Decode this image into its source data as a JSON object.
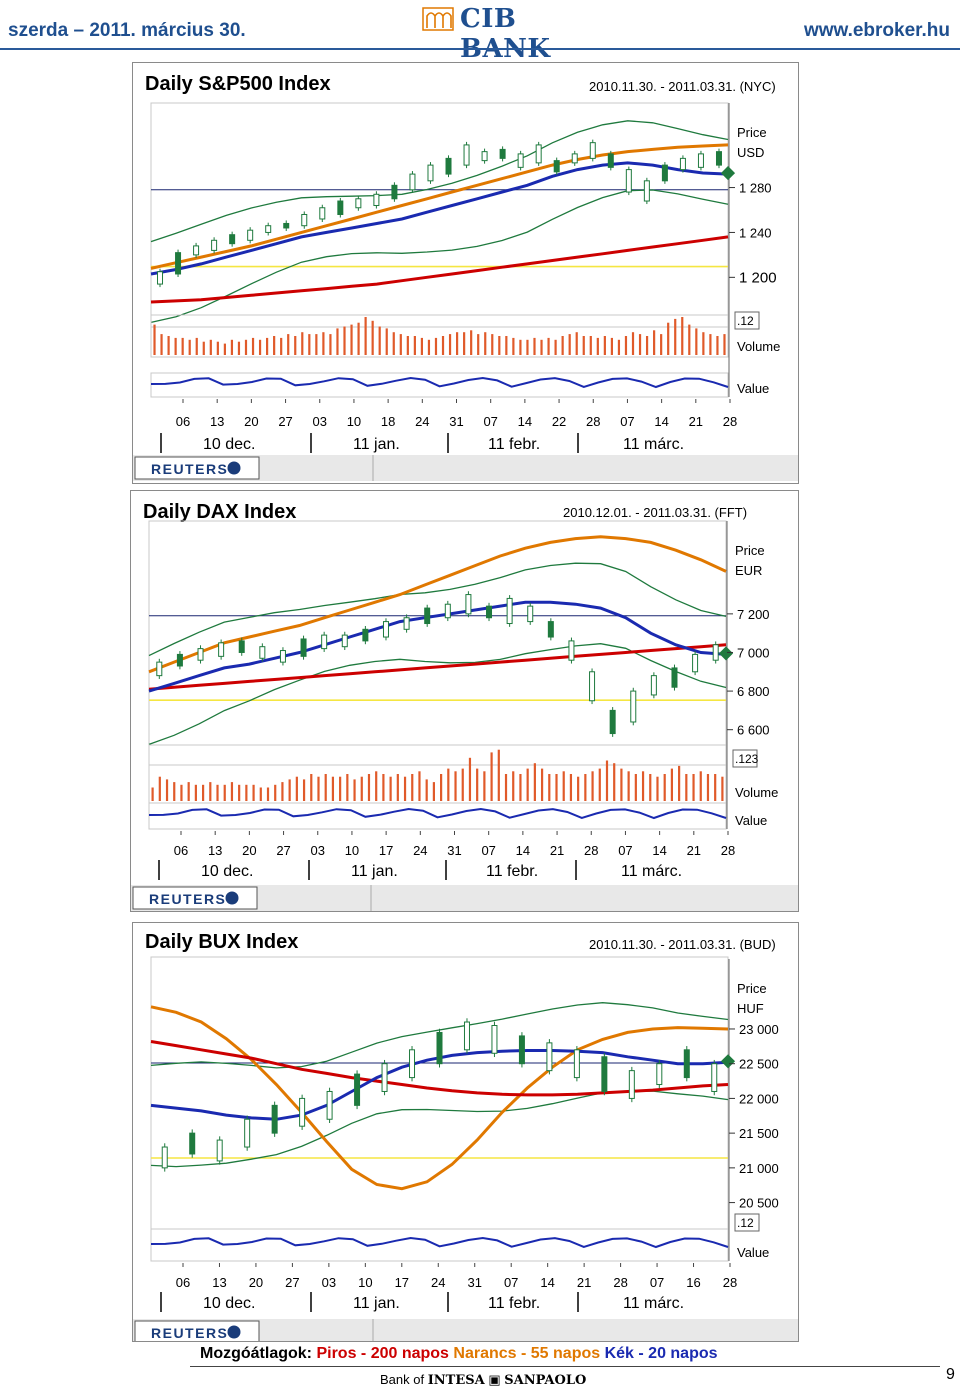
{
  "header": {
    "date": "szerda – 2011. március 30.",
    "logo": "CIB BANK",
    "url": "www.ebroker.hu"
  },
  "charts": [
    {
      "title": "Daily S&P500 Index",
      "range": "2010.11.30. - 2011.03.31. (NYC)",
      "price_label": "Price",
      "currency": "USD",
      "y_ticks": [
        "1 280",
        "1 240",
        "1 200"
      ],
      "y_bold_tick": "1 200",
      "y_tick_values": [
        1280,
        1240,
        1200
      ],
      "ylim": [
        1170,
        1350
      ],
      "scale_marker": ".12",
      "volume_label": "Volume",
      "value_label": "Value",
      "x_ticks": [
        "06",
        "13",
        "20",
        "27",
        "03",
        "10",
        "18",
        "24",
        "31",
        "07",
        "14",
        "22",
        "28",
        "07",
        "14",
        "21",
        "28"
      ],
      "months": [
        "10 dec.",
        "11 jan.",
        "11 febr.",
        "11 márc."
      ]
    },
    {
      "title": "Daily DAX Index",
      "range": "2010.12.01. - 2011.03.31. (FFT)",
      "price_label": "Price",
      "currency": "EUR",
      "y_ticks": [
        "7 200",
        "7 000",
        "6 800",
        "6 600"
      ],
      "y_tick_values": [
        7200,
        7000,
        6800,
        6600
      ],
      "ylim": [
        6500,
        7650
      ],
      "scale_marker": ".123",
      "volume_label": "Volume",
      "value_label": "Value",
      "x_ticks": [
        "06",
        "13",
        "20",
        "27",
        "03",
        "10",
        "17",
        "24",
        "31",
        "07",
        "14",
        "21",
        "28",
        "07",
        "14",
        "21",
        "28"
      ],
      "months": [
        "10 dec.",
        "11 jan.",
        "11 febr.",
        "11 márc."
      ]
    },
    {
      "title": "Daily BUX Index",
      "range": "2010.11.30. - 2011.03.31. (BUD)",
      "price_label": "Price",
      "currency": "HUF",
      "y_ticks": [
        "23 000",
        "22 500",
        "22 000",
        "21 500",
        "21 000",
        "20 500"
      ],
      "y_tick_values": [
        23000,
        22500,
        22000,
        21500,
        21000,
        20500
      ],
      "ylim": [
        20350,
        23950
      ],
      "scale_marker": ".12",
      "value_label": "Value",
      "x_ticks": [
        "06",
        "13",
        "20",
        "27",
        "03",
        "10",
        "17",
        "24",
        "31",
        "07",
        "14",
        "21",
        "28",
        "07",
        "16",
        "28"
      ],
      "months": [
        "10 dec.",
        "11 jan.",
        "11 febr.",
        "11 márc."
      ]
    }
  ],
  "chart_data": [
    {
      "type": "line",
      "title": "Daily S&P500 Index",
      "ylim": [
        1170,
        1350
      ],
      "series": [
        {
          "color": "#e07800",
          "values": [
            1208,
            1213,
            1218,
            1223,
            1228,
            1234,
            1240,
            1246,
            1252,
            1258,
            1264,
            1270,
            1276,
            1282,
            1288,
            1294,
            1300,
            1305,
            1309,
            1312,
            1314,
            1316,
            1317,
            1318
          ]
        },
        {
          "color": "#cc0000",
          "values": [
            1178,
            1179,
            1180,
            1182,
            1184,
            1186,
            1188,
            1190,
            1192,
            1194,
            1197,
            1200,
            1203,
            1206,
            1209,
            1212,
            1215,
            1218,
            1221,
            1224,
            1227,
            1230,
            1233,
            1236
          ]
        },
        {
          "color": "#1a2ab0",
          "values": [
            1203,
            1207,
            1212,
            1218,
            1224,
            1230,
            1236,
            1240,
            1244,
            1248,
            1252,
            1258,
            1264,
            1270,
            1276,
            1282,
            1290,
            1296,
            1300,
            1302,
            1300,
            1296,
            1293,
            1292
          ]
        }
      ],
      "candles": [
        [
          1194,
          1205
        ],
        [
          1203,
          1222
        ],
        [
          1220,
          1228
        ],
        [
          1224,
          1233
        ],
        [
          1230,
          1238
        ],
        [
          1233,
          1242
        ],
        [
          1240,
          1246
        ],
        [
          1244,
          1248
        ],
        [
          1246,
          1256
        ],
        [
          1252,
          1262
        ],
        [
          1256,
          1268
        ],
        [
          1262,
          1270
        ],
        [
          1264,
          1274
        ],
        [
          1270,
          1282
        ],
        [
          1278,
          1292
        ],
        [
          1286,
          1300
        ],
        [
          1292,
          1306
        ],
        [
          1300,
          1318
        ],
        [
          1304,
          1312
        ],
        [
          1306,
          1314
        ],
        [
          1298,
          1310
        ],
        [
          1302,
          1318
        ],
        [
          1294,
          1304
        ],
        [
          1302,
          1310
        ],
        [
          1306,
          1320
        ],
        [
          1298,
          1310
        ],
        [
          1276,
          1296
        ],
        [
          1268,
          1286
        ],
        [
          1286,
          1300
        ],
        [
          1296,
          1306
        ],
        [
          1298,
          1310
        ],
        [
          1300,
          1312
        ]
      ],
      "volumes": [
        0.8,
        0.55,
        0.5,
        0.45,
        0.45,
        0.4,
        0.45,
        0.35,
        0.4,
        0.35,
        0.3,
        0.4,
        0.35,
        0.4,
        0.45,
        0.4,
        0.45,
        0.5,
        0.45,
        0.55,
        0.5,
        0.6,
        0.55,
        0.55,
        0.6,
        0.55,
        0.7,
        0.75,
        0.8,
        0.85,
        1.0,
        0.9,
        0.75,
        0.7,
        0.6,
        0.55,
        0.5,
        0.5,
        0.45,
        0.4,
        0.45,
        0.5,
        0.55,
        0.6,
        0.6,
        0.65,
        0.55,
        0.6,
        0.55,
        0.5,
        0.5,
        0.45,
        0.4,
        0.4,
        0.45,
        0.4,
        0.45,
        0.4,
        0.5,
        0.55,
        0.6,
        0.5,
        0.5,
        0.45,
        0.5,
        0.45,
        0.4,
        0.5,
        0.6,
        0.55,
        0.5,
        0.65,
        0.55,
        0.85,
        0.95,
        1.0,
        0.8,
        0.7,
        0.6,
        0.55,
        0.5,
        0.55
      ]
    },
    {
      "type": "line",
      "title": "Daily DAX Index",
      "ylim": [
        6500,
        7650
      ],
      "series": [
        {
          "color": "#e07800",
          "values": [
            6900,
            6950,
            7000,
            7050,
            7080,
            7110,
            7140,
            7180,
            7220,
            7260,
            7300,
            7350,
            7400,
            7450,
            7500,
            7540,
            7570,
            7590,
            7600,
            7590,
            7570,
            7530,
            7480,
            7420
          ]
        },
        {
          "color": "#cc0000",
          "values": [
            6810,
            6820,
            6830,
            6840,
            6850,
            6860,
            6870,
            6880,
            6890,
            6900,
            6910,
            6920,
            6930,
            6940,
            6950,
            6960,
            6970,
            6980,
            6990,
            7000,
            7010,
            7020,
            7030,
            7040
          ]
        },
        {
          "color": "#1a2ab0",
          "values": [
            6800,
            6840,
            6880,
            6920,
            6940,
            6970,
            7000,
            7040,
            7080,
            7120,
            7160,
            7180,
            7200,
            7220,
            7240,
            7260,
            7260,
            7250,
            7230,
            7180,
            7100,
            7040,
            7000,
            6990
          ]
        }
      ],
      "candles": [
        [
          6880,
          6950
        ],
        [
          6930,
          6990
        ],
        [
          6960,
          7020
        ],
        [
          6980,
          7050
        ],
        [
          7000,
          7060
        ],
        [
          6970,
          7030
        ],
        [
          6950,
          7010
        ],
        [
          6980,
          7070
        ],
        [
          7020,
          7090
        ],
        [
          7030,
          7090
        ],
        [
          7060,
          7120
        ],
        [
          7080,
          7160
        ],
        [
          7120,
          7180
        ],
        [
          7150,
          7230
        ],
        [
          7180,
          7250
        ],
        [
          7200,
          7300
        ],
        [
          7180,
          7240
        ],
        [
          7150,
          7280
        ],
        [
          7160,
          7240
        ],
        [
          7080,
          7160
        ],
        [
          6960,
          7060
        ],
        [
          6750,
          6900
        ],
        [
          6580,
          6700
        ],
        [
          6640,
          6800
        ],
        [
          6780,
          6880
        ],
        [
          6820,
          6920
        ],
        [
          6900,
          6990
        ],
        [
          6960,
          7040
        ]
      ],
      "volumes": [
        0.25,
        0.45,
        0.4,
        0.35,
        0.3,
        0.35,
        0.3,
        0.3,
        0.35,
        0.3,
        0.3,
        0.35,
        0.3,
        0.3,
        0.3,
        0.25,
        0.25,
        0.3,
        0.35,
        0.4,
        0.45,
        0.4,
        0.5,
        0.45,
        0.5,
        0.45,
        0.45,
        0.5,
        0.4,
        0.45,
        0.5,
        0.55,
        0.5,
        0.45,
        0.5,
        0.45,
        0.5,
        0.55,
        0.4,
        0.35,
        0.5,
        0.6,
        0.55,
        0.6,
        0.8,
        0.6,
        0.55,
        0.9,
        0.95,
        0.5,
        0.55,
        0.5,
        0.6,
        0.7,
        0.6,
        0.5,
        0.5,
        0.55,
        0.5,
        0.45,
        0.5,
        0.55,
        0.6,
        0.75,
        0.7,
        0.6,
        0.55,
        0.5,
        0.55,
        0.5,
        0.45,
        0.5,
        0.6,
        0.65,
        0.5,
        0.5,
        0.55,
        0.5,
        0.5,
        0.45
      ]
    },
    {
      "type": "line",
      "title": "Daily BUX Index",
      "ylim": [
        20350,
        23950
      ],
      "series": [
        {
          "color": "#e07800",
          "values": [
            23320,
            23240,
            23100,
            22860,
            22560,
            22200,
            21800,
            21380,
            20980,
            20760,
            20700,
            20800,
            21050,
            21400,
            21800,
            22150,
            22450,
            22700,
            22850,
            22950,
            23000,
            23020,
            23010,
            23000
          ]
        },
        {
          "color": "#cc0000",
          "values": [
            22820,
            22760,
            22700,
            22640,
            22580,
            22500,
            22420,
            22360,
            22300,
            22250,
            22200,
            22150,
            22110,
            22080,
            22060,
            22050,
            22050,
            22060,
            22080,
            22100,
            22120,
            22150,
            22180,
            22200
          ]
        },
        {
          "color": "#1a2ab0",
          "values": [
            21900,
            21860,
            21820,
            21760,
            21720,
            21700,
            21760,
            21900,
            22100,
            22300,
            22450,
            22550,
            22620,
            22660,
            22680,
            22690,
            22690,
            22680,
            22660,
            22600,
            22550,
            22500,
            22500,
            22520
          ]
        }
      ],
      "candles": [
        [
          21000,
          21300
        ],
        [
          21200,
          21500
        ],
        [
          21100,
          21400
        ],
        [
          21300,
          21700
        ],
        [
          21500,
          21900
        ],
        [
          21600,
          22000
        ],
        [
          21700,
          22100
        ],
        [
          21900,
          22350
        ],
        [
          22100,
          22500
        ],
        [
          22300,
          22700
        ],
        [
          22500,
          22950
        ],
        [
          22700,
          23100
        ],
        [
          22650,
          23050
        ],
        [
          22500,
          22900
        ],
        [
          22400,
          22800
        ],
        [
          22300,
          22700
        ],
        [
          22100,
          22600
        ],
        [
          22000,
          22400
        ],
        [
          22200,
          22500
        ],
        [
          22300,
          22700
        ],
        [
          22100,
          22500
        ]
      ],
      "volumes": []
    }
  ]
}
